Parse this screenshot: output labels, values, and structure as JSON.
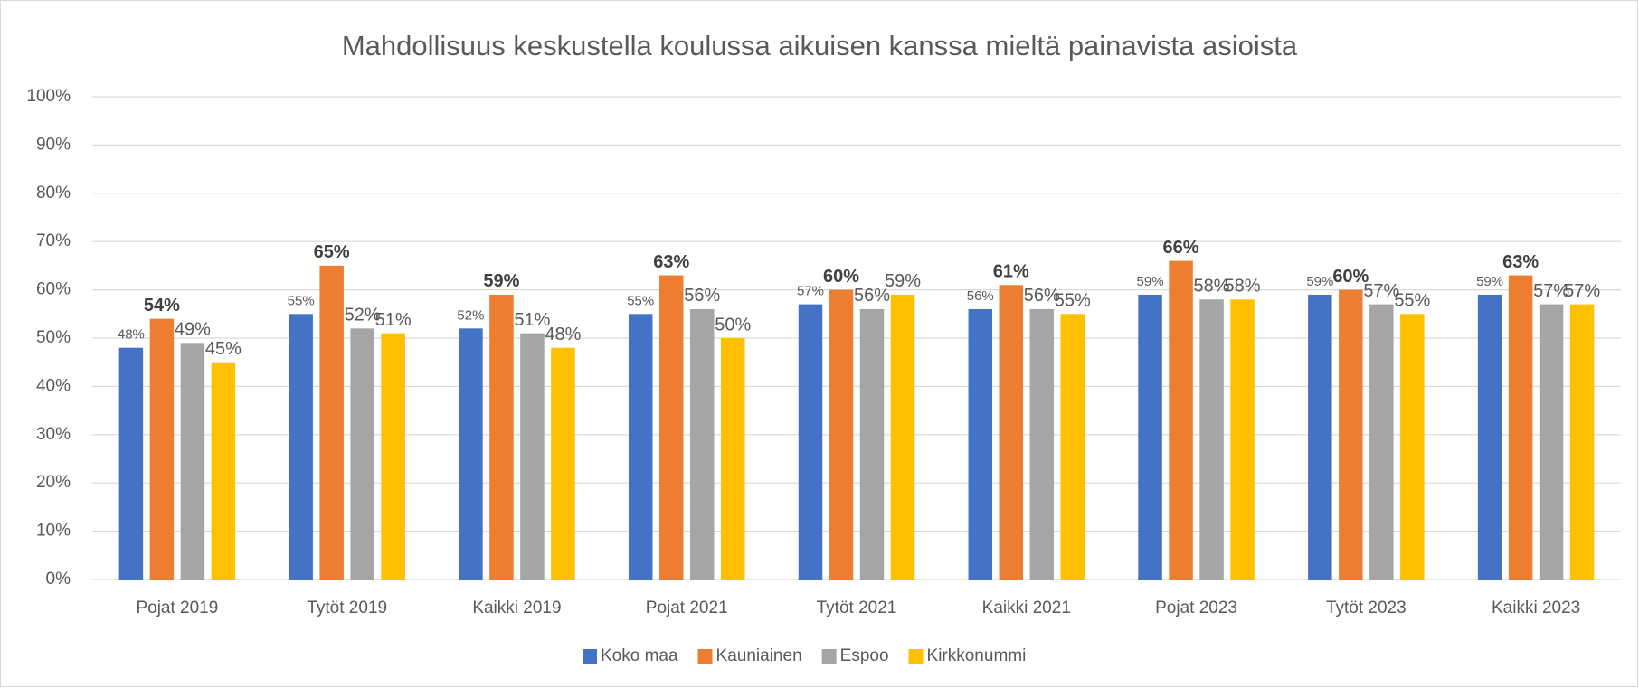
{
  "chart_data": {
    "type": "bar",
    "title": "Mahdollisuus keskustella koulussa aikuisen kanssa mieltä painavista asioista",
    "categories": [
      "Pojat 2019",
      "Tytöt 2019",
      "Kaikki 2019",
      "Pojat 2021",
      "Tytöt 2021",
      "Kaikki 2021",
      "Pojat 2023",
      "Tytöt 2023",
      "Kaikki 2023"
    ],
    "series": [
      {
        "name": "Koko maa",
        "color": "#4472c4",
        "values": [
          48,
          55,
          52,
          55,
          57,
          56,
          59,
          59,
          59
        ],
        "value_labels": [
          "48%",
          "55%",
          "52%",
          "55%",
          "57%",
          "56%",
          "59%",
          "59%",
          "59%"
        ]
      },
      {
        "name": "Kauniainen",
        "color": "#ed7d31",
        "values": [
          54,
          65,
          59,
          63,
          60,
          61,
          66,
          60,
          63
        ],
        "value_labels": [
          "54%",
          "65%",
          "59%",
          "63%",
          "60%",
          "61%",
          "66%",
          "60%",
          "63%"
        ]
      },
      {
        "name": "Espoo",
        "color": "#a5a5a5",
        "values": [
          49,
          52,
          51,
          56,
          56,
          56,
          58,
          57,
          57
        ],
        "value_labels": [
          "49%",
          "52%",
          "51%",
          "56%",
          "56%",
          "56%",
          "58%",
          "57%",
          "57%"
        ]
      },
      {
        "name": "Kirkkonummi",
        "color": "#ffc000",
        "values": [
          45,
          51,
          48,
          50,
          59,
          55,
          58,
          55,
          57
        ],
        "value_labels": [
          "45%",
          "51%",
          "48%",
          "50%",
          "59%",
          "55%",
          "58%",
          "55%",
          "57%"
        ]
      }
    ],
    "ylim": [
      0,
      100
    ],
    "yticks": [
      {
        "value": 0,
        "label": "0%"
      },
      {
        "value": 10,
        "label": "10%"
      },
      {
        "value": 20,
        "label": "20%"
      },
      {
        "value": 30,
        "label": "30%"
      },
      {
        "value": 40,
        "label": "40%"
      },
      {
        "value": 50,
        "label": "50%"
      },
      {
        "value": 60,
        "label": "60%"
      },
      {
        "value": 70,
        "label": "70%"
      },
      {
        "value": 80,
        "label": "80%"
      },
      {
        "value": 90,
        "label": "90%"
      },
      {
        "value": 100,
        "label": "100%"
      }
    ],
    "grid": true,
    "legend": "bottom"
  }
}
